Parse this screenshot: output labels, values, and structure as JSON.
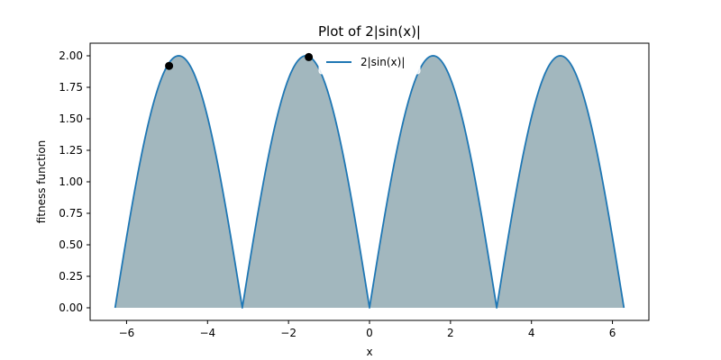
{
  "chart_data": {
    "type": "area",
    "title": "Plot of 2|sin(x)|",
    "xlabel": "x",
    "ylabel": "fitness function",
    "xlim": [
      -6.9,
      6.9
    ],
    "ylim": [
      -0.1,
      2.1
    ],
    "x_ticks": [
      -6,
      -4,
      -2,
      0,
      2,
      4,
      6
    ],
    "x_tick_labels": [
      "−6",
      "−4",
      "−2",
      "0",
      "2",
      "4",
      "6"
    ],
    "y_ticks": [
      0.0,
      0.25,
      0.5,
      0.75,
      1.0,
      1.25,
      1.5,
      1.75,
      2.0
    ],
    "y_tick_labels": [
      "0.00",
      "0.25",
      "0.50",
      "0.75",
      "1.00",
      "1.25",
      "1.50",
      "1.75",
      "2.00"
    ],
    "grid": false,
    "legend_position": "top-center",
    "series": [
      {
        "name": "2|sin(x)|",
        "function": "2|sin(x)|",
        "x_range": [
          -6.2832,
          6.2832
        ],
        "line_color": "#1f77b4",
        "fill_color": "#a2b7be",
        "fill_to": 0
      }
    ],
    "points": [
      {
        "x": -4.95,
        "y": 1.92
      },
      {
        "x": -1.5,
        "y": 1.99
      }
    ],
    "point_color": "#000000"
  }
}
